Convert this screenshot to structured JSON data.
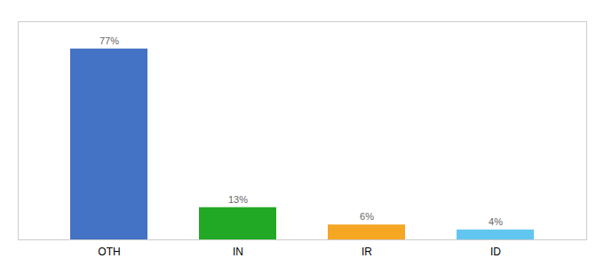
{
  "chart_data": {
    "type": "bar",
    "categories": [
      "OTH",
      "IN",
      "IR",
      "ID"
    ],
    "values": [
      77,
      13,
      6,
      4
    ],
    "value_labels": [
      "77%",
      "13%",
      "6%",
      "4%"
    ],
    "data_labels": true,
    "colors": [
      "#4472C4",
      "#21A825",
      "#F5A623",
      "#62C6F0"
    ],
    "ylim": [
      0,
      88
    ],
    "tick_labels": "x",
    "grid": false
  }
}
